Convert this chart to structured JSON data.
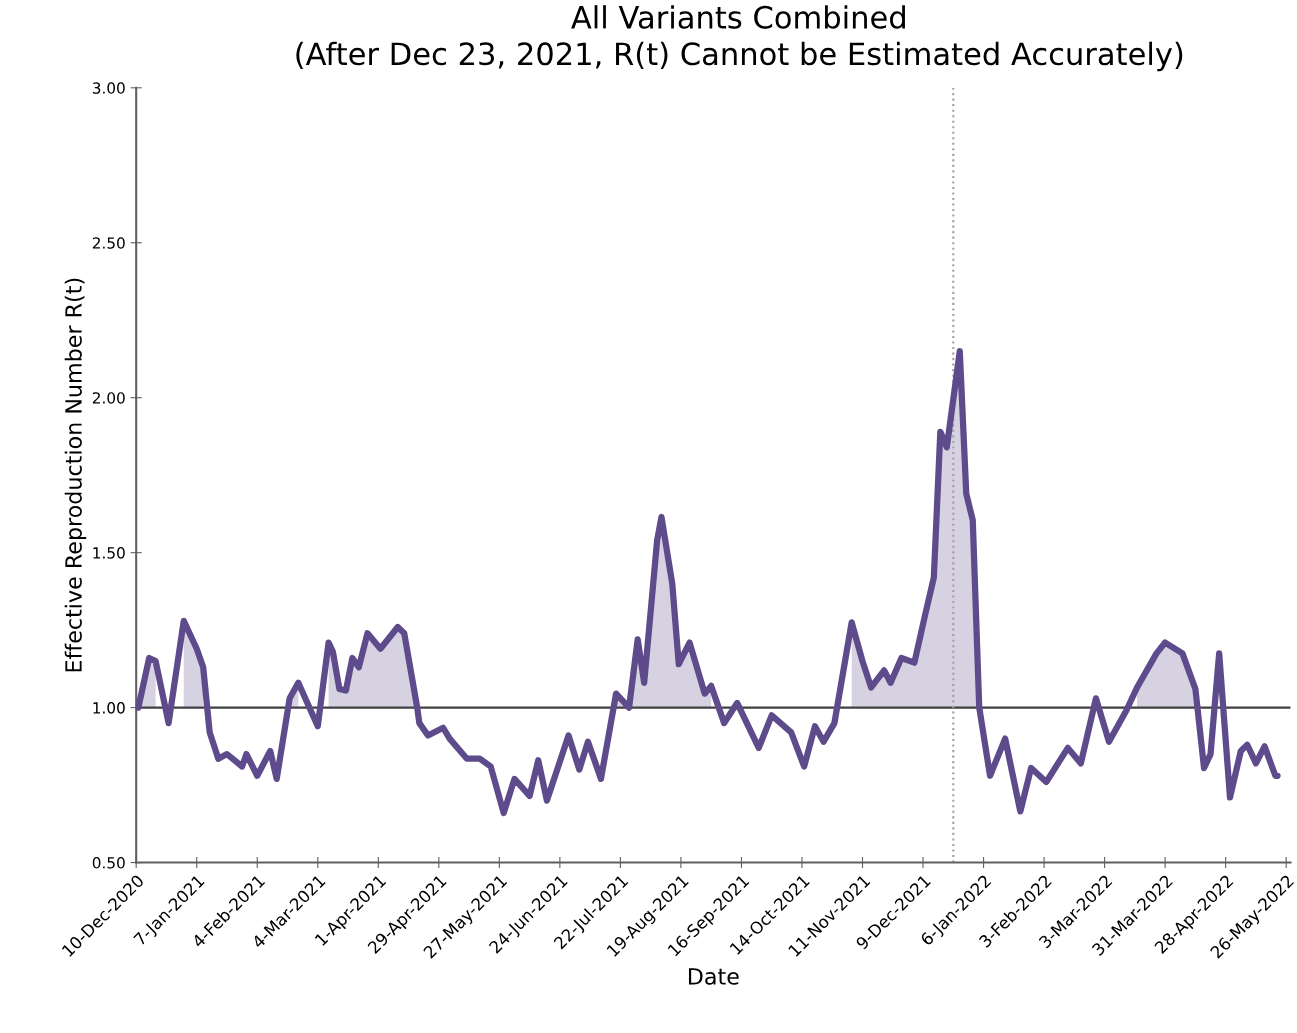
{
  "chart_data": {
    "type": "line",
    "title": "All Variants Combined\n(After Dec 23, 2021, R(t) Cannot be Estimated Accurately)",
    "xlabel": "Date",
    "ylabel": "Effective Reproduction Number R(t)",
    "x": [
      "2020-12-11",
      "2020-12-16",
      "2020-12-19",
      "2020-12-25",
      "2021-01-01",
      "2021-01-07",
      "2021-01-10",
      "2021-01-13",
      "2021-01-17",
      "2021-01-21",
      "2021-01-28",
      "2021-01-30",
      "2021-02-04",
      "2021-02-10",
      "2021-02-13",
      "2021-02-19",
      "2021-02-23",
      "2021-03-04",
      "2021-03-09",
      "2021-03-11",
      "2021-03-14",
      "2021-03-17",
      "2021-03-20",
      "2021-03-23",
      "2021-03-27",
      "2021-04-02",
      "2021-04-10",
      "2021-04-13",
      "2021-04-19",
      "2021-04-20",
      "2021-04-24",
      "2021-05-01",
      "2021-05-04",
      "2021-05-12",
      "2021-05-18",
      "2021-05-23",
      "2021-05-29",
      "2021-06-03",
      "2021-06-10",
      "2021-06-14",
      "2021-06-18",
      "2021-06-28",
      "2021-07-03",
      "2021-07-07",
      "2021-07-13",
      "2021-07-20",
      "2021-07-26",
      "2021-07-30",
      "2021-08-02",
      "2021-08-08",
      "2021-08-10",
      "2021-08-15",
      "2021-08-18",
      "2021-08-23",
      "2021-08-30",
      "2021-09-02",
      "2021-09-08",
      "2021-09-14",
      "2021-09-24",
      "2021-09-30",
      "2021-10-09",
      "2021-10-15",
      "2021-10-20",
      "2021-10-24",
      "2021-10-29",
      "2021-11-06",
      "2021-11-11",
      "2021-11-15",
      "2021-11-21",
      "2021-11-24",
      "2021-11-29",
      "2021-12-05",
      "2021-12-10",
      "2021-12-14",
      "2021-12-17",
      "2021-12-20",
      "2021-12-26",
      "2021-12-29",
      "2022-01-01",
      "2022-01-04",
      "2022-01-09",
      "2022-01-16",
      "2022-01-23",
      "2022-01-28",
      "2022-02-04",
      "2022-02-14",
      "2022-02-20",
      "2022-02-27",
      "2022-03-05",
      "2022-03-13",
      "2022-03-18",
      "2022-03-27",
      "2022-03-31",
      "2022-04-08",
      "2022-04-14",
      "2022-04-18",
      "2022-04-21",
      "2022-04-25",
      "2022-04-30",
      "2022-05-05",
      "2022-05-08",
      "2022-05-12",
      "2022-05-16",
      "2022-05-21",
      "2022-05-22"
    ],
    "series": [
      {
        "color": "#5e4b8b",
        "lower": [
          1.0,
          1.0,
          1.0,
          null,
          1.0,
          1.0,
          1.0,
          null,
          null,
          null,
          null,
          null,
          null,
          null,
          null,
          1.0,
          1.0,
          null,
          1.0,
          1.0,
          1.0,
          1.0,
          1.0,
          1.0,
          1.0,
          1.0,
          1.0,
          1.0,
          1.0,
          null,
          null,
          null,
          null,
          null,
          null,
          null,
          null,
          null,
          null,
          null,
          null,
          null,
          null,
          null,
          null,
          1.0,
          1.0,
          1.0,
          1.0,
          1.0,
          1.0,
          1.0,
          1.0,
          1.0,
          1.0,
          1.0,
          null,
          null,
          null,
          null,
          null,
          null,
          null,
          null,
          null,
          1.0,
          1.0,
          1.0,
          1.0,
          1.0,
          1.0,
          1.0,
          1.0,
          1.0,
          1.0,
          1.0,
          1.0,
          1.0,
          1.0,
          1.0,
          null,
          null,
          null,
          null,
          null,
          null,
          null,
          null,
          null,
          null,
          1.0,
          1.0,
          1.0,
          1.0,
          1.0,
          null,
          null,
          null,
          null,
          null,
          null,
          null,
          null,
          null,
          null
        ],
        "upper": [
          1.0,
          1.16,
          1.15,
          null,
          1.28,
          1.19,
          1.13,
          null,
          null,
          null,
          null,
          null,
          null,
          null,
          null,
          1.03,
          1.08,
          null,
          1.21,
          1.18,
          1.06,
          1.055,
          1.16,
          1.13,
          1.24,
          1.19,
          1.26,
          1.24,
          1.0,
          null,
          null,
          null,
          null,
          null,
          null,
          null,
          null,
          null,
          null,
          null,
          null,
          null,
          null,
          null,
          null,
          1.045,
          1.0,
          1.22,
          1.08,
          1.54,
          1.615,
          1.4,
          1.14,
          1.21,
          1.045,
          1.07,
          null,
          null,
          null,
          null,
          null,
          null,
          null,
          null,
          null,
          1.275,
          1.15,
          1.065,
          1.12,
          1.08,
          1.16,
          1.145,
          1.3,
          1.42,
          1.89,
          1.84,
          2.15,
          1.69,
          1.605,
          1.0,
          null,
          null,
          null,
          null,
          null,
          null,
          null,
          null,
          null,
          null,
          1.065,
          1.175,
          1.21,
          1.175,
          1.06,
          null,
          null,
          null,
          null,
          null,
          null,
          null,
          null,
          null,
          null
        ],
        "values": [
          1.0,
          1.16,
          1.15,
          0.95,
          1.28,
          1.19,
          1.13,
          0.92,
          0.835,
          0.85,
          0.81,
          0.85,
          0.78,
          0.86,
          0.77,
          1.03,
          1.08,
          0.94,
          1.21,
          1.18,
          1.06,
          1.055,
          1.16,
          1.13,
          1.24,
          1.19,
          1.26,
          1.24,
          1.0,
          0.95,
          0.91,
          0.935,
          0.9,
          0.835,
          0.835,
          0.81,
          0.66,
          0.77,
          0.715,
          0.83,
          0.7,
          0.91,
          0.8,
          0.89,
          0.77,
          1.045,
          1.0,
          1.22,
          1.08,
          1.54,
          1.615,
          1.4,
          1.14,
          1.21,
          1.045,
          1.07,
          0.95,
          1.015,
          0.87,
          0.975,
          0.92,
          0.81,
          0.94,
          0.89,
          0.95,
          1.275,
          1.15,
          1.065,
          1.12,
          1.08,
          1.16,
          1.145,
          1.3,
          1.42,
          1.89,
          1.84,
          2.15,
          1.69,
          1.605,
          1.0,
          0.78,
          0.9,
          0.665,
          0.805,
          0.76,
          0.87,
          0.82,
          1.03,
          0.89,
          0.99,
          1.065,
          1.175,
          1.21,
          1.175,
          1.06,
          0.805,
          0.85,
          1.175,
          0.71,
          0.86,
          0.88,
          0.82,
          0.875,
          0.78,
          0.78
        ]
      }
    ],
    "xlim": [
      "2020-12-10",
      "2022-05-28"
    ],
    "xticks": [
      {
        "value": "2020-12-10",
        "label": "10-Dec-2020"
      },
      {
        "value": "2021-01-07",
        "label": "7-Jan-2021"
      },
      {
        "value": "2021-02-04",
        "label": "4-Feb-2021"
      },
      {
        "value": "2021-03-04",
        "label": "4-Mar-2021"
      },
      {
        "value": "2021-04-01",
        "label": "1-Apr-2021"
      },
      {
        "value": "2021-04-29",
        "label": "29-Apr-2021"
      },
      {
        "value": "2021-05-27",
        "label": "27-May-2021"
      },
      {
        "value": "2021-06-24",
        "label": "24-Jun-2021"
      },
      {
        "value": "2021-07-22",
        "label": "22-Jul-2021"
      },
      {
        "value": "2021-08-19",
        "label": "19-Aug-2021"
      },
      {
        "value": "2021-09-16",
        "label": "16-Sep-2021"
      },
      {
        "value": "2021-10-14",
        "label": "14-Oct-2021"
      },
      {
        "value": "2021-11-11",
        "label": "11-Nov-2021"
      },
      {
        "value": "2021-12-09",
        "label": "9-Dec-2021"
      },
      {
        "value": "2022-01-06",
        "label": "6-Jan-2022"
      },
      {
        "value": "2022-02-03",
        "label": "3-Feb-2022"
      },
      {
        "value": "2022-03-03",
        "label": "3-Mar-2022"
      },
      {
        "value": "2022-03-31",
        "label": "31-Mar-2022"
      },
      {
        "value": "2022-04-28",
        "label": "28-Apr-2022"
      },
      {
        "value": "2022-05-26",
        "label": "26-May-2022"
      }
    ],
    "ylim": [
      0.5,
      3.0
    ],
    "yticks": [
      {
        "value": 0.5,
        "label": "0.50"
      },
      {
        "value": 1.0,
        "label": "1.00"
      },
      {
        "value": 1.5,
        "label": "1.50"
      },
      {
        "value": 2.0,
        "label": "2.00"
      },
      {
        "value": 2.5,
        "label": "2.50"
      },
      {
        "value": 3.0,
        "label": "3.00"
      }
    ],
    "ref_lines": [
      {
        "axis": "y",
        "value": 1.0,
        "color": "#404040",
        "line_style": "solid"
      },
      {
        "axis": "x",
        "value": "2021-12-23",
        "color": "#a0a0a0",
        "line_style": "dotted"
      }
    ],
    "grid": false
  }
}
